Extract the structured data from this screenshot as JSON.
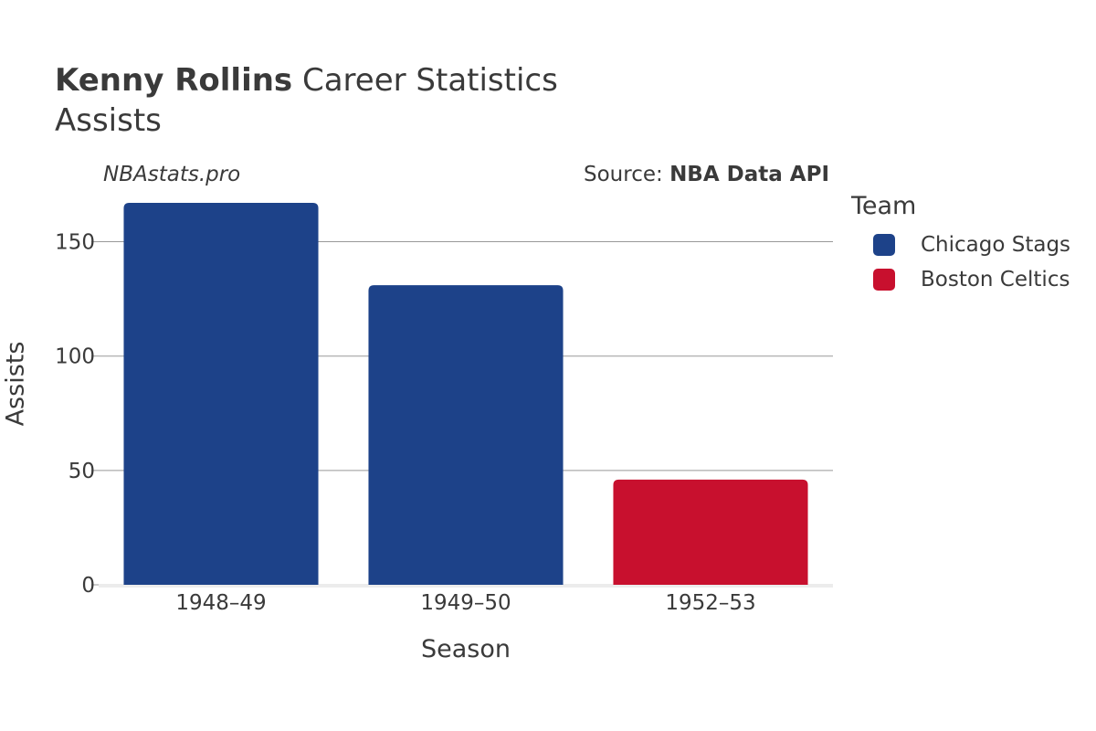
{
  "header": {
    "title_bold": "Kenny Rollins",
    "title_rest": " Career Statistics",
    "subtitle": "Assists"
  },
  "watermark": "NBAstats.pro",
  "source": {
    "prefix": "Source: ",
    "name": "NBA Data API"
  },
  "legend": {
    "title": "Team",
    "items": [
      {
        "label": "Chicago Stags",
        "color": "#1d4289"
      },
      {
        "label": "Boston Celtics",
        "color": "#c8102e"
      }
    ]
  },
  "chart_data": {
    "type": "bar",
    "categories": [
      "1948–49",
      "1949–50",
      "1952–53"
    ],
    "values": [
      167,
      131,
      46
    ],
    "teams": [
      "Chicago Stags",
      "Chicago Stags",
      "Boston Celtics"
    ],
    "colors": [
      "#1d4289",
      "#1d4289",
      "#c8102e"
    ],
    "xlabel": "Season",
    "ylabel": "Assists",
    "ylim": [
      0,
      167
    ],
    "yticks": [
      0,
      50,
      100,
      150
    ],
    "grid": true,
    "legend_position": "right"
  }
}
